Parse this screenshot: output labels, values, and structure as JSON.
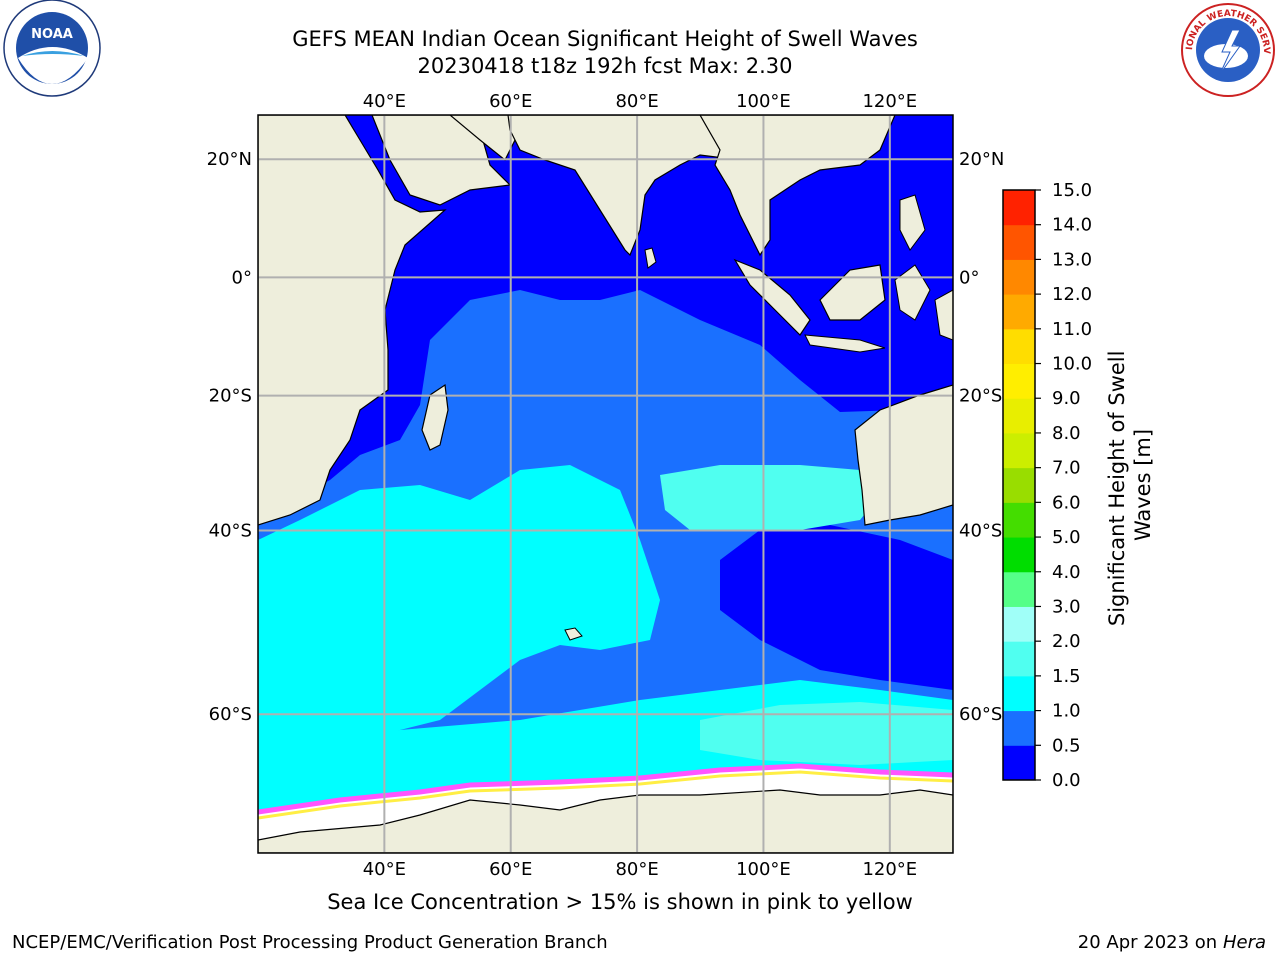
{
  "title": {
    "line1": "GEFS MEAN Indian Ocean Significant Height of Swell Waves",
    "line2": "20230418 t18z 192h fcst   Max: 2.30"
  },
  "map": {
    "lon_labels": [
      "40°E",
      "60°E",
      "80°E",
      "100°E",
      "120°E"
    ],
    "lon_values": [
      40,
      60,
      80,
      100,
      120
    ],
    "lat_labels": [
      "20°N",
      "0°",
      "20°S",
      "40°S",
      "60°S"
    ],
    "lat_values": [
      20,
      0,
      -20,
      -40,
      -60
    ],
    "extent": {
      "lon": [
        20,
        130
      ],
      "lat": [
        -70,
        27
      ]
    },
    "grid": true,
    "land_color": "#eeeedc",
    "ice_colors": [
      "#ff55ff",
      "#ffee44",
      "#ffaa33",
      "#ffffff"
    ]
  },
  "colorbar": {
    "label": "Significant Height of Swell Waves [m]",
    "ticks": [
      "0.0",
      "0.5",
      "1.0",
      "1.5",
      "2.0",
      "3.0",
      "4.0",
      "5.0",
      "6.0",
      "7.0",
      "8.0",
      "9.0",
      "10.0",
      "11.0",
      "12.0",
      "13.0",
      "14.0",
      "15.0"
    ],
    "colors": [
      "#0000ff",
      "#1a70ff",
      "#00ffff",
      "#50fff0",
      "#a0fff8",
      "#55ff88",
      "#00dd00",
      "#44dd00",
      "#99dd00",
      "#ccee00",
      "#e8ee00",
      "#ffee00",
      "#ffdd00",
      "#ffaa00",
      "#ff8800",
      "#ff5500",
      "#ff2200",
      "#ff0000"
    ]
  },
  "caption": "Sea Ice Concentration > 15% is shown in pink to yellow",
  "footer": {
    "left": "NCEP/EMC/Verification Post Processing Product Generation Branch",
    "right_text": "20 Apr 2023 on ",
    "right_italic": "Hera"
  },
  "logos": {
    "noaa": "NOAA",
    "nws": "NATIONAL WEATHER SERVICE"
  }
}
